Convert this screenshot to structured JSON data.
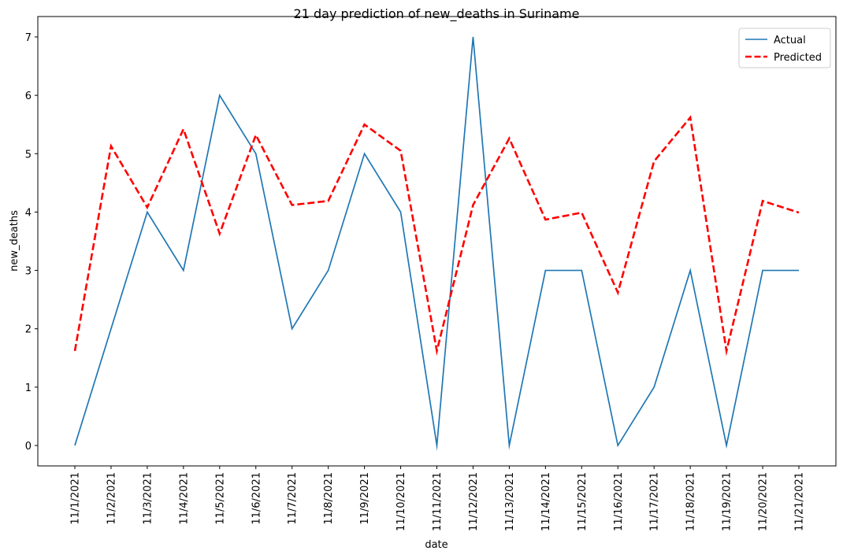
{
  "chart_data": {
    "type": "line",
    "title": "21 day prediction of new_deaths in Suriname",
    "xlabel": "date",
    "ylabel": "new_deaths",
    "categories": [
      "11/1/2021",
      "11/2/2021",
      "11/3/2021",
      "11/4/2021",
      "11/5/2021",
      "11/6/2021",
      "11/7/2021",
      "11/8/2021",
      "11/9/2021",
      "11/10/2021",
      "11/11/2021",
      "11/12/2021",
      "11/13/2021",
      "11/14/2021",
      "11/15/2021",
      "11/16/2021",
      "11/17/2021",
      "11/18/2021",
      "11/19/2021",
      "11/20/2021",
      "11/21/2021"
    ],
    "ylim": [
      -0.35,
      7.35
    ],
    "yticks": [
      0,
      1,
      2,
      3,
      4,
      5,
      6,
      7
    ],
    "grid": false,
    "legend_position": "upper right",
    "series": [
      {
        "name": "Actual",
        "color": "#1f77b4",
        "style": "solid",
        "values": [
          0,
          2,
          4,
          3,
          6,
          5,
          2,
          3,
          5,
          4,
          0,
          7,
          0,
          3,
          3,
          0,
          1,
          3,
          0,
          3,
          3
        ]
      },
      {
        "name": "Predicted",
        "color": "#ff0000",
        "style": "dashed",
        "values": [
          1.62,
          5.13,
          4.08,
          5.42,
          3.63,
          5.32,
          4.12,
          4.19,
          5.5,
          5.05,
          1.62,
          4.12,
          5.26,
          3.87,
          3.99,
          2.62,
          4.87,
          5.62,
          1.62,
          4.19,
          3.99
        ]
      }
    ]
  }
}
